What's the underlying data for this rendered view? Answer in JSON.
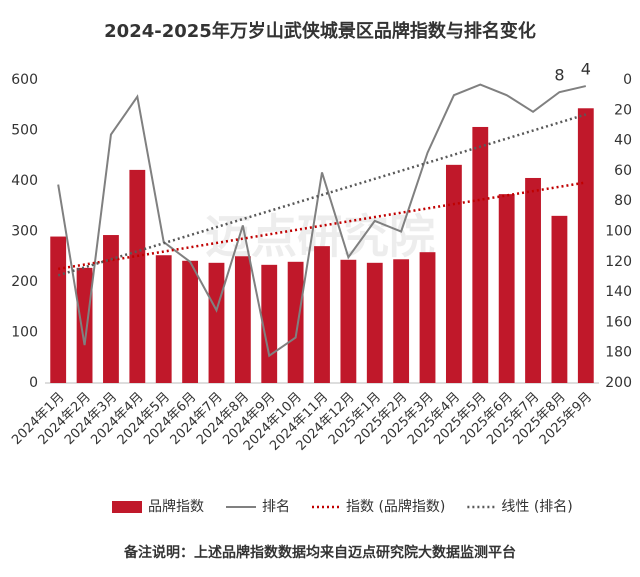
{
  "chart_data": {
    "type": "bar-line",
    "title": "2024-2025年万岁山武侠城景区品牌指数与排名变化",
    "watermark": "迈点研究院",
    "footnote": "备注说明：上述品牌指数数据均来自迈点研究院大数据监测平台",
    "categories": [
      "2024年1月",
      "2024年2月",
      "2024年3月",
      "2024年4月",
      "2024年5月",
      "2024年6月",
      "2024年7月",
      "2024年8月",
      "2024年9月",
      "2024年10月",
      "2024年11月",
      "2024年12月",
      "2025年1月",
      "2025年2月",
      "2025年3月",
      "2025年4月",
      "2025年5月",
      "2025年6月",
      "2025年7月",
      "2025年8月",
      "2025年9月"
    ],
    "series": [
      {
        "name": "品牌指数",
        "type": "bar",
        "color": "#c0182a",
        "values": [
          290,
          228,
          293,
          422,
          253,
          242,
          238,
          251,
          234,
          240,
          271,
          244,
          238,
          245,
          259,
          432,
          507,
          374,
          406,
          331,
          544
        ],
        "trendline": {
          "name": "指数 (品牌指数)",
          "color": "#c00000"
        }
      },
      {
        "name": "排名",
        "type": "line",
        "axis": "y2",
        "color": "#808080",
        "values": [
          69,
          175,
          36,
          11,
          107,
          120,
          152,
          96,
          182,
          170,
          61,
          117,
          93,
          100,
          48,
          10,
          3,
          10,
          21,
          8,
          4
        ],
        "trendline": {
          "name": "线性 (排名)",
          "color": "#595959"
        }
      }
    ],
    "labeled_points": [
      19,
      20
    ],
    "ylim": [
      0,
      600
    ],
    "yticks": [
      0,
      100,
      200,
      300,
      400,
      500,
      600
    ],
    "y2lim": [
      0,
      200
    ],
    "y2ticks": [
      0,
      20,
      40,
      60,
      80,
      100,
      120,
      140,
      160,
      180,
      200
    ],
    "y2_reversed": true,
    "legend": "bottom"
  }
}
